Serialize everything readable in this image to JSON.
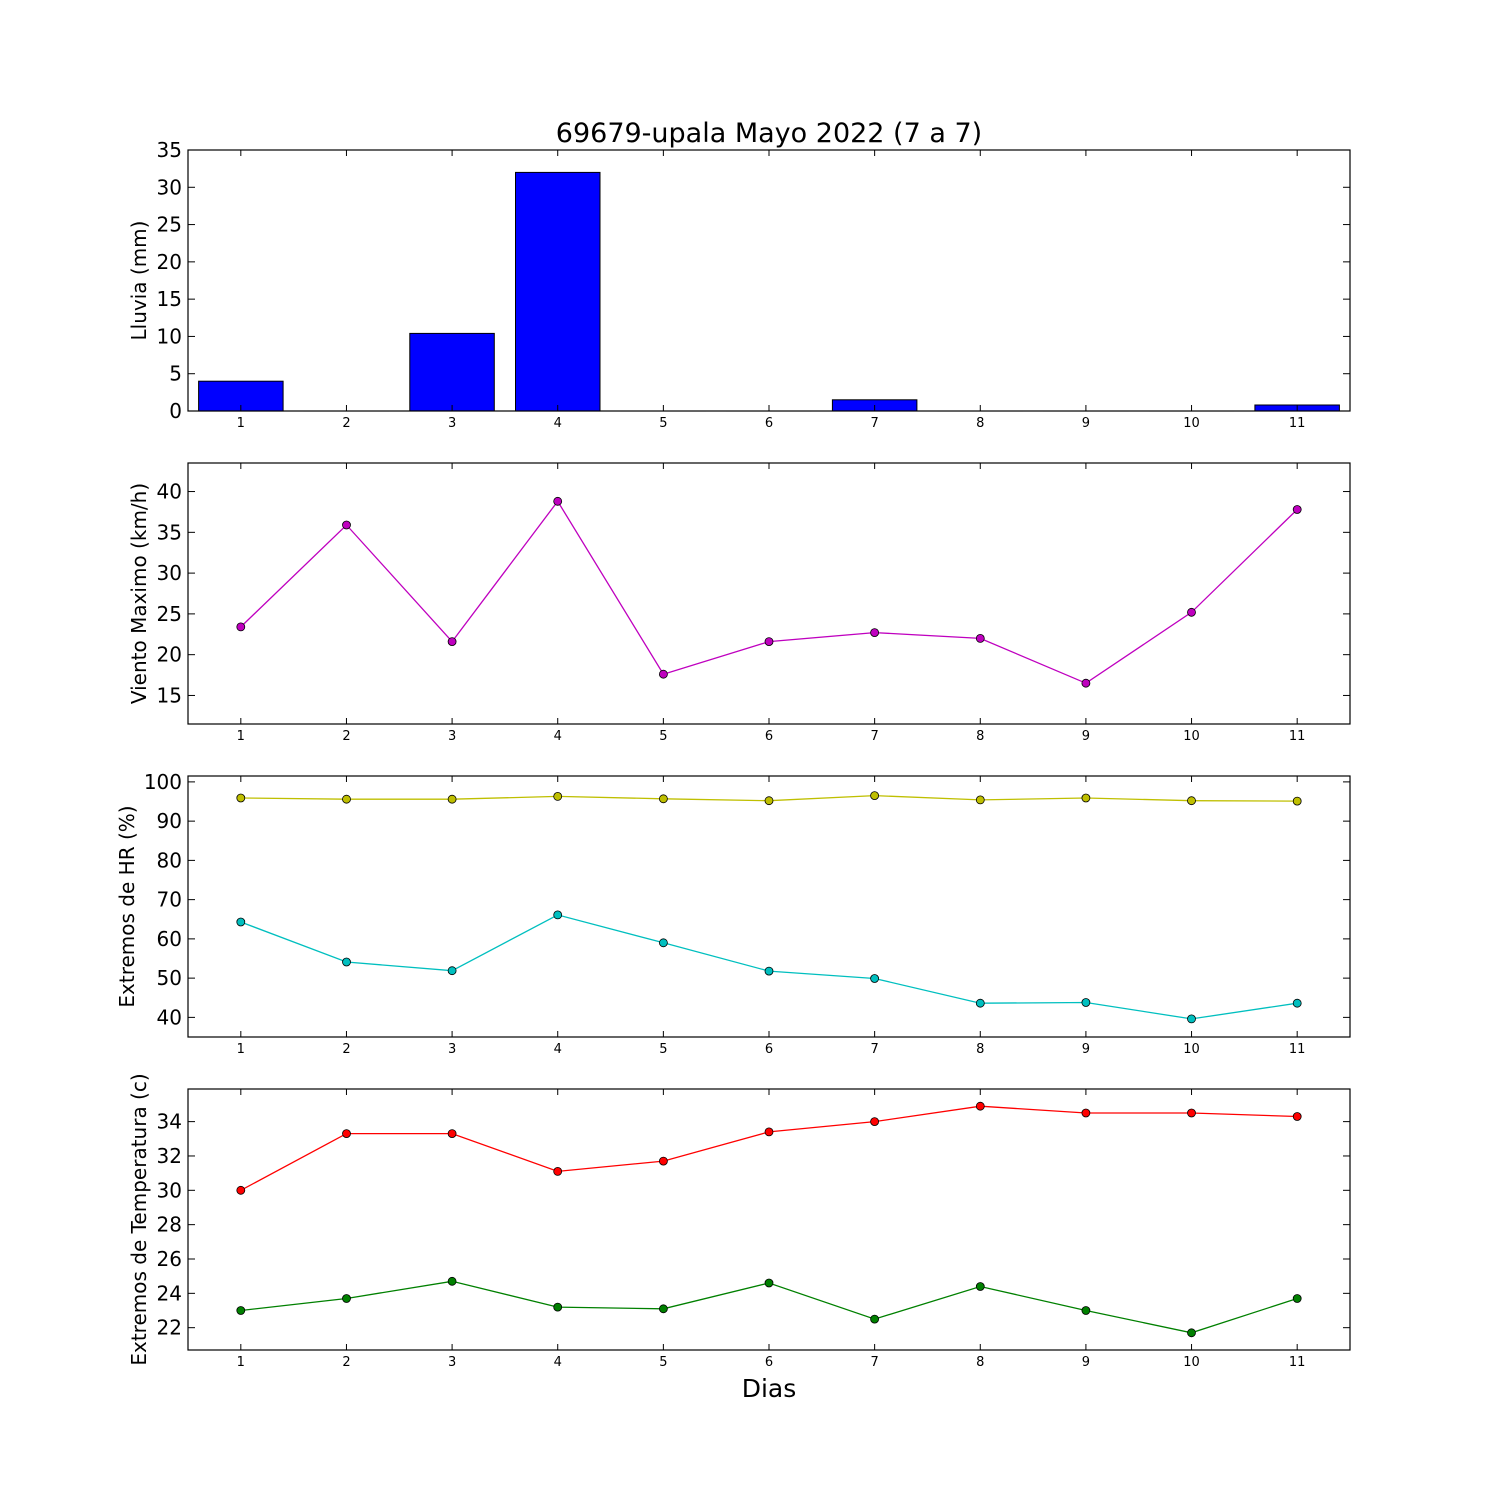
{
  "title": "69679-upala Mayo 2022  (7 a 7)",
  "xlabel": "Dias",
  "colors": {
    "rain_bar": "#0000ff",
    "wind": "#bf00bf",
    "hr_max": "#bfbf00",
    "hr_min": "#00bfbf",
    "temp_max": "#ff0000",
    "temp_min": "#008000"
  },
  "chart_data": [
    {
      "type": "bar",
      "ylabel": "Lluvia (mm)",
      "categories": [
        "1",
        "2",
        "3",
        "4",
        "5",
        "6",
        "7",
        "8",
        "9",
        "10",
        "11"
      ],
      "x": [
        1,
        2,
        3,
        4,
        5,
        6,
        7,
        8,
        9,
        10,
        11
      ],
      "values": [
        4.0,
        0.0,
        10.4,
        32.0,
        0.0,
        0.0,
        1.5,
        0.0,
        0.0,
        0.0,
        0.8
      ],
      "xlim": [
        0.5,
        11.5
      ],
      "ylim": [
        0,
        35
      ],
      "yticks": [
        0,
        5,
        10,
        15,
        20,
        25,
        30,
        35
      ],
      "grid": false
    },
    {
      "type": "line",
      "ylabel": "Viento Maximo (km/h)",
      "x": [
        1,
        2,
        3,
        4,
        5,
        6,
        7,
        8,
        9,
        10,
        11
      ],
      "xlim": [
        0.5,
        11.5
      ],
      "ylim": [
        11.5,
        43.5
      ],
      "yticks": [
        15,
        20,
        25,
        30,
        35,
        40
      ],
      "grid": false,
      "series": [
        {
          "values": [
            23.4,
            35.9,
            21.6,
            38.8,
            17.6,
            21.6,
            22.7,
            22.0,
            16.5,
            25.2,
            37.8
          ]
        }
      ]
    },
    {
      "type": "line",
      "ylabel": "Extremos de HR (%)",
      "x": [
        1,
        2,
        3,
        4,
        5,
        6,
        7,
        8,
        9,
        10,
        11
      ],
      "xlim": [
        0.5,
        11.5
      ],
      "ylim": [
        35,
        101.5
      ],
      "yticks": [
        40,
        50,
        60,
        70,
        80,
        90,
        100
      ],
      "grid": false,
      "series": [
        {
          "values": [
            95.9,
            95.6,
            95.6,
            96.3,
            95.7,
            95.2,
            96.5,
            95.4,
            95.9,
            95.2,
            95.1
          ]
        },
        {
          "values": [
            64.3,
            54.1,
            51.9,
            66.1,
            59.0,
            51.8,
            49.9,
            43.6,
            43.8,
            39.6,
            43.6
          ]
        }
      ]
    },
    {
      "type": "line",
      "ylabel": "Extremos de Temperatura (c)",
      "x": [
        1,
        2,
        3,
        4,
        5,
        6,
        7,
        8,
        9,
        10,
        11
      ],
      "xlim": [
        0.5,
        11.5
      ],
      "ylim": [
        20.7,
        35.9
      ],
      "yticks": [
        22,
        24,
        26,
        28,
        30,
        32,
        34
      ],
      "grid": false,
      "series": [
        {
          "values": [
            30.0,
            33.3,
            33.3,
            31.1,
            31.7,
            33.4,
            34.0,
            34.9,
            34.5,
            34.5,
            34.3
          ]
        },
        {
          "values": [
            23.0,
            23.7,
            24.7,
            23.2,
            23.1,
            24.6,
            22.5,
            24.4,
            23.0,
            21.7,
            23.7
          ]
        }
      ]
    }
  ]
}
